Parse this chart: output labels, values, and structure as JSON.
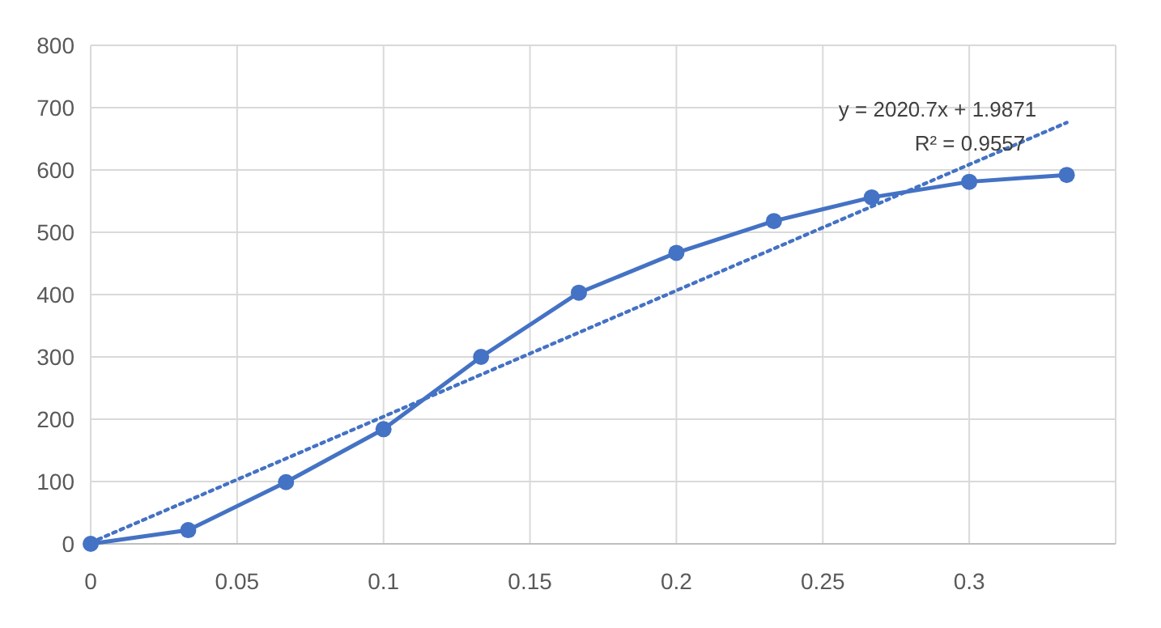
{
  "chart_data": {
    "type": "line",
    "x": [
      0,
      0.0333,
      0.0667,
      0.1,
      0.1333,
      0.1667,
      0.2,
      0.2333,
      0.2667,
      0.3,
      0.3333
    ],
    "series": [
      {
        "color": "#4472c4",
        "values": [
          0,
          22,
          99,
          184,
          300,
          403,
          467,
          518,
          556,
          581,
          592
        ],
        "marker": "circle",
        "line_style": "solid"
      },
      {
        "type": "line",
        "color": "#4472c4",
        "x": [
          0,
          0.3333
        ],
        "values": [
          2,
          676
        ],
        "marker": "none",
        "line_style": "dotted"
      }
    ],
    "annotations": [
      "y = 2020.7x + 1.9871",
      "R² = 0.9557"
    ],
    "xlim": [
      0,
      0.35
    ],
    "xticks": [
      0,
      0.05,
      0.1,
      0.15,
      0.2,
      0.25,
      0.3,
      {
        "value": 0.35,
        "label": null
      }
    ],
    "ylim": [
      0,
      800
    ],
    "yticks": [
      0,
      100,
      200,
      300,
      400,
      500,
      600,
      700,
      800
    ],
    "grid": true
  }
}
